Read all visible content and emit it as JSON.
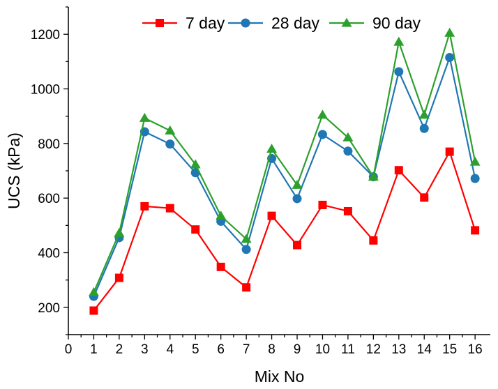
{
  "chart_data": {
    "type": "line",
    "title": "",
    "xlabel": "Mix No",
    "ylabel": "UCS (kPa)",
    "xlim": [
      0,
      16.6
    ],
    "ylim": [
      100,
      1300
    ],
    "xticks": [
      0,
      1,
      2,
      3,
      4,
      5,
      6,
      7,
      8,
      9,
      10,
      11,
      12,
      13,
      14,
      15,
      16
    ],
    "yticks": [
      200,
      400,
      600,
      800,
      1000,
      1200
    ],
    "x": [
      1,
      2,
      3,
      4,
      5,
      6,
      7,
      8,
      9,
      10,
      11,
      12,
      13,
      14,
      15,
      16
    ],
    "legend_position": "top",
    "grid": false,
    "series": [
      {
        "name": "7 day",
        "color": "#ff0000",
        "marker": "square",
        "values": [
          188,
          308,
          570,
          563,
          485,
          348,
          273,
          535,
          428,
          575,
          552,
          445,
          702,
          602,
          770,
          482
        ]
      },
      {
        "name": "28 day",
        "color": "#1f77b4",
        "marker": "circle",
        "values": [
          240,
          455,
          843,
          798,
          693,
          515,
          412,
          745,
          598,
          833,
          772,
          678,
          1063,
          855,
          1115,
          672
        ]
      },
      {
        "name": "90 day",
        "color": "#2ca02c",
        "marker": "triangle",
        "values": [
          255,
          472,
          893,
          847,
          723,
          535,
          450,
          780,
          648,
          905,
          822,
          678,
          1172,
          905,
          1205,
          733
        ]
      }
    ]
  }
}
